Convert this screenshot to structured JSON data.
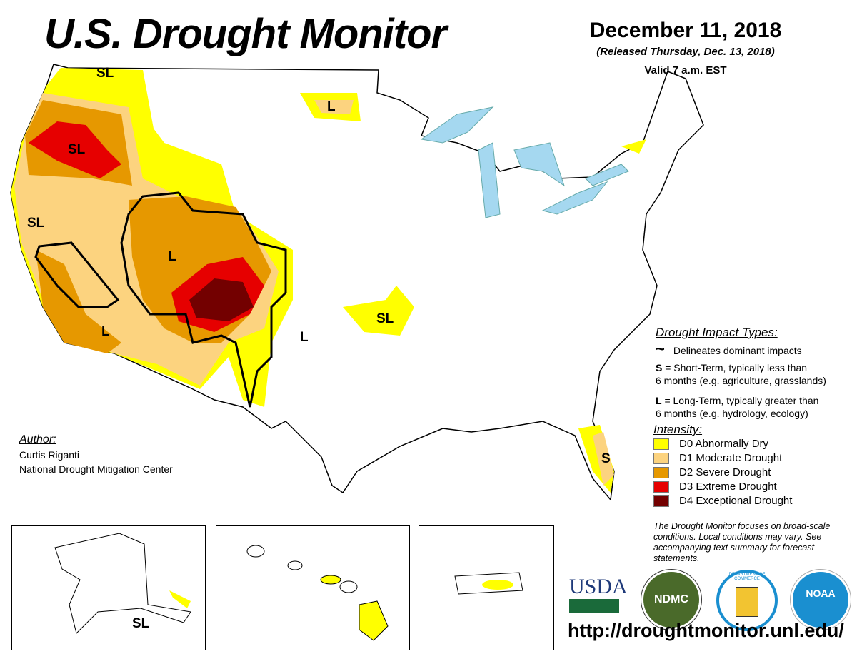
{
  "header": {
    "title": "U.S. Drought Monitor",
    "date": "December 11, 2018",
    "released": "(Released Thursday, Dec. 13, 2018)",
    "valid": "Valid 7 a.m. EST"
  },
  "map_labels": {
    "wa": "SL",
    "or": "SL",
    "ca": "SL",
    "nd": "L",
    "ut": "L",
    "sca": "L",
    "nm": "L",
    "ks": "SL",
    "fl": "S",
    "ak": "SL"
  },
  "legend": {
    "impact_title": "Drought Impact Types:",
    "delineates": "Delineates dominant impacts",
    "short_key": "S",
    "short_text": " = Short-Term, typically less than",
    "short_text2": "6 months (e.g. agriculture, grasslands)",
    "long_key": "L",
    "long_text": " = Long-Term, typically greater than",
    "long_text2": "6 months (e.g. hydrology, ecology)",
    "intensity_title": "Intensity:",
    "levels": [
      {
        "label": "D0 Abnormally Dry",
        "color": "#ffff00"
      },
      {
        "label": "D1 Moderate Drought",
        "color": "#fcd37f"
      },
      {
        "label": "D2 Severe Drought",
        "color": "#e69800"
      },
      {
        "label": "D3 Extreme Drought",
        "color": "#e60000"
      },
      {
        "label": "D4 Exceptional Drought",
        "color": "#730000"
      }
    ],
    "note": "The Drought Monitor focuses on broad-scale conditions. Local conditions may vary. See accompanying text summary for forecast statements."
  },
  "author": {
    "heading": "Author:",
    "name": "Curtis Riganti",
    "org": "National Drought Mitigation Center"
  },
  "logos": {
    "usda": "USDA",
    "ndmc": "NDMC",
    "commerce": "DEPARTMENT OF COMMERCE",
    "noaa": "NOAA"
  },
  "footer": {
    "url": "http://droughtmonitor.unl.edu/"
  }
}
